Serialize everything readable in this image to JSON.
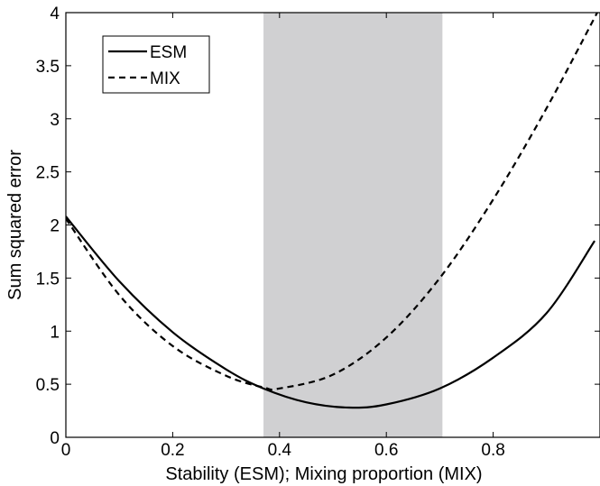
{
  "chart_data": {
    "type": "line",
    "xlabel": "Stability (ESM); Mixing proportion (MIX)",
    "ylabel": "Sum squared error",
    "xlim": [
      0,
      1
    ],
    "ylim": [
      0,
      4
    ],
    "xticks": [
      0,
      0.2,
      0.4,
      0.6,
      0.8
    ],
    "xtick_labels": [
      "0",
      "0.2",
      "0.4",
      "0.6",
      "0.8"
    ],
    "yticks": [
      0,
      0.5,
      1,
      1.5,
      2,
      2.5,
      3,
      3.5,
      4
    ],
    "ytick_labels": [
      "0",
      "0.5",
      "1",
      "1.5",
      "2",
      "2.5",
      "3",
      "3.5",
      "4"
    ],
    "shaded_region": {
      "x": [
        0.37,
        0.705
      ],
      "color": "#d0d0d2"
    },
    "legend": {
      "position": "top-left",
      "entries": [
        "ESM",
        "MIX"
      ]
    },
    "series": [
      {
        "name": "ESM",
        "style": "solid",
        "color": "#000000",
        "x": [
          0,
          0.1,
          0.2,
          0.3,
          0.37,
          0.45,
          0.53,
          0.6,
          0.7,
          0.8,
          0.9,
          0.99
        ],
        "values": [
          2.08,
          1.47,
          0.99,
          0.64,
          0.46,
          0.33,
          0.28,
          0.31,
          0.46,
          0.75,
          1.17,
          1.85
        ]
      },
      {
        "name": "MIX",
        "style": "dashed",
        "color": "#000000",
        "x": [
          0,
          0.1,
          0.2,
          0.3,
          0.37,
          0.4,
          0.5,
          0.6,
          0.7,
          0.8,
          0.9,
          1.0
        ],
        "values": [
          2.06,
          1.34,
          0.86,
          0.58,
          0.47,
          0.46,
          0.59,
          0.94,
          1.5,
          2.24,
          3.1,
          4.05
        ]
      }
    ]
  }
}
